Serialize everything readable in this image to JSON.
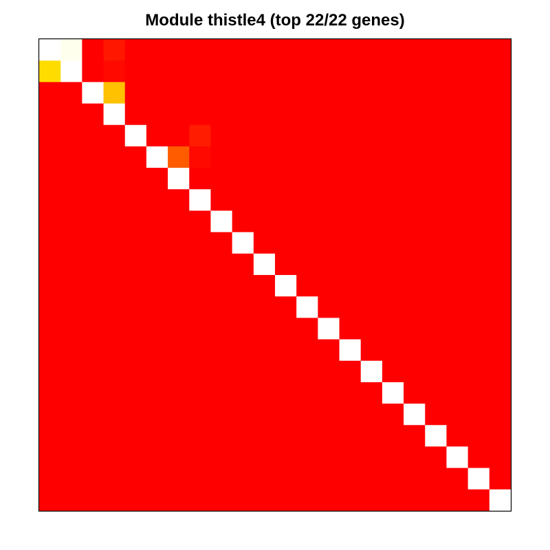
{
  "chart_data": {
    "type": "heatmap",
    "title": "Module thistle4 (top 22/22 genes)",
    "xlabel": "",
    "ylabel": "",
    "n_genes": 22,
    "colors": {
      "low": "#FF0000",
      "high": "#FFFFFF",
      "frame": "#000000"
    },
    "value_range": [
      0,
      1
    ],
    "diagonal_value": 1,
    "background_value": 0,
    "cells": [
      {
        "row": 0,
        "col": 1,
        "value": 0.97
      },
      {
        "row": 1,
        "col": 0,
        "value": 0.48
      },
      {
        "row": 0,
        "col": 3,
        "value": 0.05
      },
      {
        "row": 1,
        "col": 3,
        "value": 0.02
      },
      {
        "row": 2,
        "col": 3,
        "value": 0.42
      },
      {
        "row": 4,
        "col": 7,
        "value": 0.06
      },
      {
        "row": 5,
        "col": 6,
        "value": 0.2
      },
      {
        "row": 5,
        "col": 7,
        "value": 0.02
      }
    ]
  }
}
